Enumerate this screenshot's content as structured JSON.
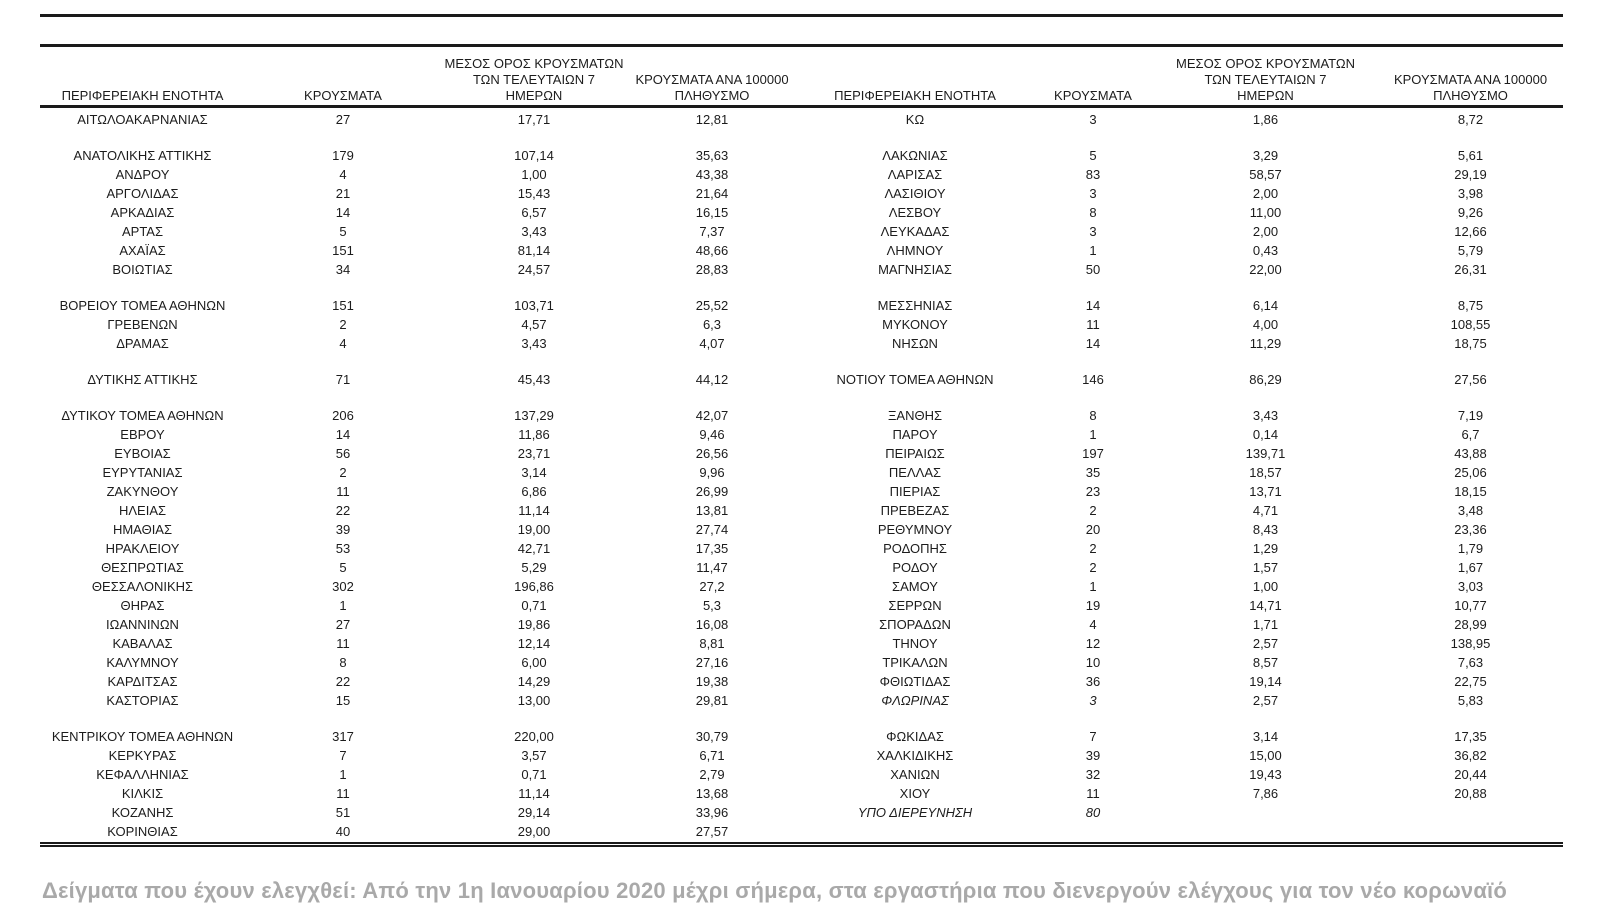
{
  "table": {
    "headers": {
      "region": "ΠΕΡΙΦΕΡΕΙΑΚΗ ΕΝΟΤΗΤΑ",
      "cases": "ΚΡΟΥΣΜΑΤΑ",
      "avg7_line1": "ΜΕΣΟΣ ΟΡΟΣ ΚΡΟΥΣΜΑΤΩΝ",
      "avg7_line2": "ΤΩΝ ΤΕΛΕΥΤΑΙΩΝ 7",
      "avg7_line3": "ΗΜΕΡΩΝ",
      "per100k_line1": "ΚΡΟΥΣΜΑΤΑ ΑΝΑ 100000",
      "per100k_line2": "ΠΛΗΘΥΣΜΟ"
    },
    "rows": [
      {
        "l": [
          "ΑΙΤΩΛΟΑΚΑΡΝΑΝΙΑΣ",
          "27",
          "17,71",
          "12,81"
        ],
        "r": [
          "ΚΩ",
          "3",
          "1,86",
          "8,72"
        ]
      },
      {
        "spacer": true
      },
      {
        "l": [
          "ΑΝΑΤΟΛΙΚΗΣ ΑΤΤΙΚΗΣ",
          "179",
          "107,14",
          "35,63"
        ],
        "r": [
          "ΛΑΚΩΝΙΑΣ",
          "5",
          "3,29",
          "5,61"
        ]
      },
      {
        "l": [
          "ΑΝΔΡΟΥ",
          "4",
          "1,00",
          "43,38"
        ],
        "r": [
          "ΛΑΡΙΣΑΣ",
          "83",
          "58,57",
          "29,19"
        ]
      },
      {
        "l": [
          "ΑΡΓΟΛΙΔΑΣ",
          "21",
          "15,43",
          "21,64"
        ],
        "r": [
          "ΛΑΣΙΘΙΟΥ",
          "3",
          "2,00",
          "3,98"
        ]
      },
      {
        "l": [
          "ΑΡΚΑΔΙΑΣ",
          "14",
          "6,57",
          "16,15"
        ],
        "r": [
          "ΛΕΣΒΟΥ",
          "8",
          "11,00",
          "9,26"
        ]
      },
      {
        "l": [
          "ΑΡΤΑΣ",
          "5",
          "3,43",
          "7,37"
        ],
        "r": [
          "ΛΕΥΚΑΔΑΣ",
          "3",
          "2,00",
          "12,66"
        ]
      },
      {
        "l": [
          "ΑΧΑΪΑΣ",
          "151",
          "81,14",
          "48,66"
        ],
        "r": [
          "ΛΗΜΝΟΥ",
          "1",
          "0,43",
          "5,79"
        ]
      },
      {
        "l": [
          "ΒΟΙΩΤΙΑΣ",
          "34",
          "24,57",
          "28,83"
        ],
        "r": [
          "ΜΑΓΝΗΣΙΑΣ",
          "50",
          "22,00",
          "26,31"
        ]
      },
      {
        "spacer": true
      },
      {
        "l": [
          "ΒΟΡΕΙΟΥ ΤΟΜΕΑ ΑΘΗΝΩΝ",
          "151",
          "103,71",
          "25,52"
        ],
        "r": [
          "ΜΕΣΣΗΝΙΑΣ",
          "14",
          "6,14",
          "8,75"
        ]
      },
      {
        "l": [
          "ΓΡΕΒΕΝΩΝ",
          "2",
          "4,57",
          "6,3"
        ],
        "r": [
          "ΜΥΚΟΝΟΥ",
          "11",
          "4,00",
          "108,55"
        ]
      },
      {
        "l": [
          "ΔΡΑΜΑΣ",
          "4",
          "3,43",
          "4,07"
        ],
        "r": [
          "ΝΗΣΩΝ",
          "14",
          "11,29",
          "18,75"
        ]
      },
      {
        "spacer": true
      },
      {
        "l": [
          "ΔΥΤΙΚΗΣ ΑΤΤΙΚΗΣ",
          "71",
          "45,43",
          "44,12"
        ],
        "r": [
          "ΝΟΤΙΟΥ ΤΟΜΕΑ ΑΘΗΝΩΝ",
          "146",
          "86,29",
          "27,56"
        ]
      },
      {
        "spacer": true
      },
      {
        "l": [
          "ΔΥΤΙΚΟΥ ΤΟΜΕΑ ΑΘΗΝΩΝ",
          "206",
          "137,29",
          "42,07"
        ],
        "r": [
          "ΞΑΝΘΗΣ",
          "8",
          "3,43",
          "7,19"
        ]
      },
      {
        "l": [
          "ΕΒΡΟΥ",
          "14",
          "11,86",
          "9,46"
        ],
        "r": [
          "ΠΑΡΟΥ",
          "1",
          "0,14",
          "6,7"
        ]
      },
      {
        "l": [
          "ΕΥΒΟΙΑΣ",
          "56",
          "23,71",
          "26,56"
        ],
        "r": [
          "ΠΕΙΡΑΙΩΣ",
          "197",
          "139,71",
          "43,88"
        ]
      },
      {
        "l": [
          "ΕΥΡΥΤΑΝΙΑΣ",
          "2",
          "3,14",
          "9,96"
        ],
        "r": [
          "ΠΕΛΛΑΣ",
          "35",
          "18,57",
          "25,06"
        ]
      },
      {
        "l": [
          "ΖΑΚΥΝΘΟΥ",
          "11",
          "6,86",
          "26,99"
        ],
        "r": [
          "ΠΙΕΡΙΑΣ",
          "23",
          "13,71",
          "18,15"
        ]
      },
      {
        "l": [
          "ΗΛΕΙΑΣ",
          "22",
          "11,14",
          "13,81"
        ],
        "r": [
          "ΠΡΕΒΕΖΑΣ",
          "2",
          "4,71",
          "3,48"
        ]
      },
      {
        "l": [
          "ΗΜΑΘΙΑΣ",
          "39",
          "19,00",
          "27,74"
        ],
        "r": [
          "ΡΕΘΥΜΝΟΥ",
          "20",
          "8,43",
          "23,36"
        ]
      },
      {
        "l": [
          "ΗΡΑΚΛΕΙΟΥ",
          "53",
          "42,71",
          "17,35"
        ],
        "r": [
          "ΡΟΔΟΠΗΣ",
          "2",
          "1,29",
          "1,79"
        ]
      },
      {
        "l": [
          "ΘΕΣΠΡΩΤΙΑΣ",
          "5",
          "5,29",
          "11,47"
        ],
        "r": [
          "ΡΟΔΟΥ",
          "2",
          "1,57",
          "1,67"
        ]
      },
      {
        "l": [
          "ΘΕΣΣΑΛΟΝΙΚΗΣ",
          "302",
          "196,86",
          "27,2"
        ],
        "r": [
          "ΣΑΜΟΥ",
          "1",
          "1,00",
          "3,03"
        ]
      },
      {
        "l": [
          "ΘΗΡΑΣ",
          "1",
          "0,71",
          "5,3"
        ],
        "r": [
          "ΣΕΡΡΩΝ",
          "19",
          "14,71",
          "10,77"
        ]
      },
      {
        "l": [
          "ΙΩΑΝΝΙΝΩΝ",
          "27",
          "19,86",
          "16,08"
        ],
        "r": [
          "ΣΠΟΡΑΔΩΝ",
          "4",
          "1,71",
          "28,99"
        ]
      },
      {
        "l": [
          "ΚΑΒΑΛΑΣ",
          "11",
          "12,14",
          "8,81"
        ],
        "r": [
          "ΤΗΝΟΥ",
          "12",
          "2,57",
          "138,95"
        ]
      },
      {
        "l": [
          "ΚΑΛΥΜΝΟΥ",
          "8",
          "6,00",
          "27,16"
        ],
        "r": [
          "ΤΡΙΚΑΛΩΝ",
          "10",
          "8,57",
          "7,63"
        ]
      },
      {
        "l": [
          "ΚΑΡΔΙΤΣΑΣ",
          "22",
          "14,29",
          "19,38"
        ],
        "r": [
          "ΦΘΙΩΤΙΔΑΣ",
          "36",
          "19,14",
          "22,75"
        ]
      },
      {
        "l": [
          "ΚΑΣΤΟΡΙΑΣ",
          "15",
          "13,00",
          "29,81"
        ],
        "r": [
          "ΦΛΩΡΙΝΑΣ",
          "3",
          "2,57",
          "5,83"
        ],
        "ri": true
      },
      {
        "spacer": true
      },
      {
        "l": [
          "ΚΕΝΤΡΙΚΟΥ ΤΟΜΕΑ ΑΘΗΝΩΝ",
          "317",
          "220,00",
          "30,79"
        ],
        "r": [
          "ΦΩΚΙΔΑΣ",
          "7",
          "3,14",
          "17,35"
        ]
      },
      {
        "l": [
          "ΚΕΡΚΥΡΑΣ",
          "7",
          "3,57",
          "6,71"
        ],
        "r": [
          "ΧΑΛΚΙΔΙΚΗΣ",
          "39",
          "15,00",
          "36,82"
        ]
      },
      {
        "l": [
          "ΚΕΦΑΛΛΗΝΙΑΣ",
          "1",
          "0,71",
          "2,79"
        ],
        "r": [
          "ΧΑΝΙΩΝ",
          "32",
          "19,43",
          "20,44"
        ]
      },
      {
        "l": [
          "ΚΙΛΚΙΣ",
          "11",
          "11,14",
          "13,68"
        ],
        "r": [
          "ΧΙΟΥ",
          "11",
          "7,86",
          "20,88"
        ]
      },
      {
        "l": [
          "ΚΟΖΑΝΗΣ",
          "51",
          "29,14",
          "33,96"
        ],
        "r": [
          "ΥΠΟ ΔΙΕΡΕΥΝΗΣΗ",
          "80",
          "",
          ""
        ],
        "ri": true
      },
      {
        "l": [
          "ΚΟΡΙΝΘΙΑΣ",
          "40",
          "29,00",
          "27,57"
        ],
        "r": [
          "",
          "",
          "",
          ""
        ]
      }
    ]
  },
  "footer": {
    "note": "Δείγματα που έχουν ελεγχθεί: Από την 1η Ιανουαρίου 2020 μέχρι σήμερα, στα εργαστήρια που διενεργούν ελέγχους για τον νέο κορωναϊό"
  },
  "colors": {
    "text": "#1c1c1c",
    "rule": "#1a1a1a",
    "footer_text": "#a9a9a9"
  }
}
